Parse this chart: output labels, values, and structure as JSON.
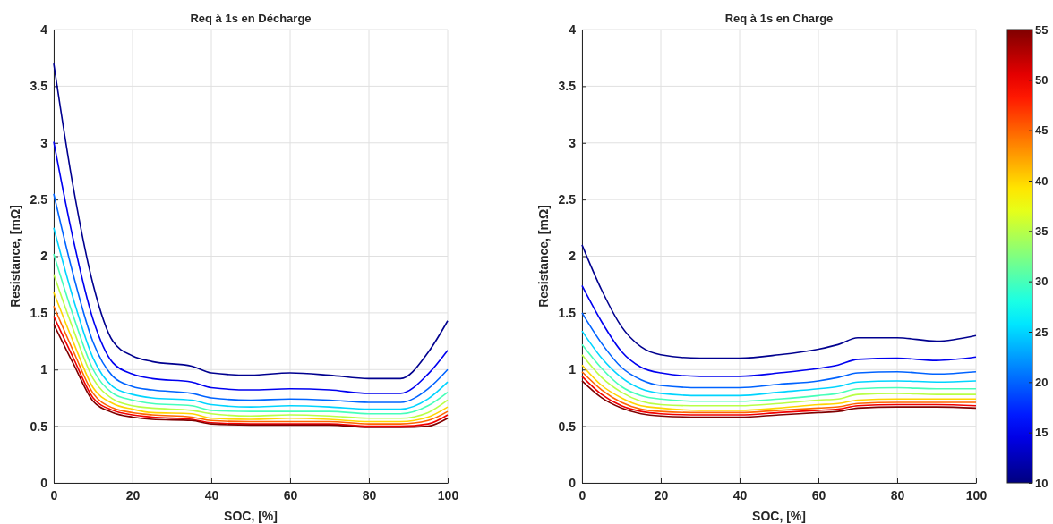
{
  "chart_data": [
    {
      "type": "line",
      "title": "Req à 1s en Décharge",
      "xlabel": "SOC, [%]",
      "ylabel": "Resistance, [mΩ]",
      "xlim": [
        0,
        100
      ],
      "xticks": [
        0,
        20,
        40,
        60,
        80,
        100
      ],
      "ylim": [
        0,
        4
      ],
      "yticks": [
        0,
        0.5,
        1,
        1.5,
        2,
        2.5,
        3,
        3.5,
        4
      ],
      "grid": true,
      "x": [
        0,
        5,
        10,
        15,
        20,
        25,
        35,
        40,
        50,
        60,
        70,
        80,
        88,
        95,
        100
      ],
      "series": [
        {
          "color": "#00008f",
          "values": [
            3.7,
            2.6,
            1.75,
            1.25,
            1.12,
            1.07,
            1.03,
            0.97,
            0.95,
            0.97,
            0.95,
            0.92,
            0.92,
            1.15,
            1.43
          ]
        },
        {
          "color": "#0000f0",
          "values": [
            3.01,
            2.14,
            1.44,
            1.06,
            0.96,
            0.92,
            0.89,
            0.84,
            0.82,
            0.83,
            0.82,
            0.79,
            0.79,
            0.96,
            1.17
          ]
        },
        {
          "color": "#0063ff",
          "values": [
            2.55,
            1.83,
            1.24,
            0.94,
            0.85,
            0.82,
            0.79,
            0.75,
            0.73,
            0.74,
            0.73,
            0.71,
            0.71,
            0.83,
            1.0
          ]
        },
        {
          "color": "#00d4ff",
          "values": [
            2.25,
            1.62,
            1.1,
            0.85,
            0.78,
            0.75,
            0.73,
            0.69,
            0.67,
            0.68,
            0.67,
            0.65,
            0.65,
            0.74,
            0.89
          ]
        },
        {
          "color": "#46ffb9",
          "values": [
            2.02,
            1.47,
            1.0,
            0.79,
            0.73,
            0.7,
            0.68,
            0.64,
            0.63,
            0.63,
            0.63,
            0.61,
            0.61,
            0.68,
            0.8
          ]
        },
        {
          "color": "#b9ff46",
          "values": [
            1.84,
            1.35,
            0.92,
            0.74,
            0.68,
            0.66,
            0.64,
            0.61,
            0.59,
            0.6,
            0.59,
            0.57,
            0.57,
            0.62,
            0.73
          ]
        },
        {
          "color": "#ffd400",
          "values": [
            1.68,
            1.24,
            0.84,
            0.7,
            0.65,
            0.62,
            0.61,
            0.57,
            0.56,
            0.57,
            0.56,
            0.54,
            0.54,
            0.58,
            0.67
          ]
        },
        {
          "color": "#ff6300",
          "values": [
            1.56,
            1.16,
            0.79,
            0.66,
            0.62,
            0.6,
            0.58,
            0.55,
            0.54,
            0.54,
            0.54,
            0.52,
            0.52,
            0.55,
            0.63
          ]
        },
        {
          "color": "#f00000",
          "values": [
            1.47,
            1.1,
            0.75,
            0.64,
            0.6,
            0.58,
            0.56,
            0.53,
            0.52,
            0.52,
            0.52,
            0.5,
            0.5,
            0.52,
            0.6
          ]
        },
        {
          "color": "#800000",
          "values": [
            1.4,
            1.05,
            0.72,
            0.62,
            0.58,
            0.56,
            0.55,
            0.52,
            0.51,
            0.51,
            0.51,
            0.49,
            0.49,
            0.5,
            0.57
          ]
        }
      ]
    },
    {
      "type": "line",
      "title": "Req à 1s en Charge",
      "xlabel": "SOC, [%]",
      "ylabel": "Resistance, [mΩ]",
      "xlim": [
        0,
        100
      ],
      "xticks": [
        0,
        20,
        40,
        60,
        80,
        100
      ],
      "ylim": [
        0,
        4
      ],
      "yticks": [
        0,
        0.5,
        1,
        1.5,
        2,
        2.5,
        3,
        3.5,
        4
      ],
      "grid": true,
      "clim": [
        10,
        55
      ],
      "cticks": [
        10,
        15,
        20,
        25,
        30,
        35,
        40,
        45,
        50,
        55
      ],
      "x": [
        0,
        5,
        10,
        15,
        20,
        30,
        40,
        50,
        60,
        65,
        70,
        80,
        90,
        100
      ],
      "series": [
        {
          "color": "#00008f",
          "values": [
            2.1,
            1.7,
            1.38,
            1.2,
            1.13,
            1.1,
            1.1,
            1.13,
            1.18,
            1.22,
            1.28,
            1.28,
            1.25,
            1.3
          ]
        },
        {
          "color": "#0000f0",
          "values": [
            1.74,
            1.42,
            1.16,
            1.02,
            0.97,
            0.94,
            0.94,
            0.97,
            1.01,
            1.04,
            1.09,
            1.1,
            1.08,
            1.11
          ]
        },
        {
          "color": "#0063ff",
          "values": [
            1.5,
            1.23,
            1.02,
            0.91,
            0.86,
            0.84,
            0.84,
            0.87,
            0.9,
            0.93,
            0.97,
            0.98,
            0.96,
            0.98
          ]
        },
        {
          "color": "#00d4ff",
          "values": [
            1.34,
            1.1,
            0.93,
            0.83,
            0.79,
            0.77,
            0.77,
            0.8,
            0.83,
            0.85,
            0.89,
            0.9,
            0.89,
            0.9
          ]
        },
        {
          "color": "#46ffb9",
          "values": [
            1.22,
            1.01,
            0.85,
            0.77,
            0.74,
            0.72,
            0.72,
            0.74,
            0.77,
            0.79,
            0.83,
            0.84,
            0.83,
            0.83
          ]
        },
        {
          "color": "#b9ff46",
          "values": [
            1.13,
            0.93,
            0.8,
            0.72,
            0.69,
            0.68,
            0.68,
            0.7,
            0.73,
            0.74,
            0.78,
            0.79,
            0.78,
            0.78
          ]
        },
        {
          "color": "#ffd400",
          "values": [
            1.04,
            0.86,
            0.75,
            0.68,
            0.66,
            0.64,
            0.64,
            0.66,
            0.69,
            0.7,
            0.73,
            0.74,
            0.74,
            0.74
          ]
        },
        {
          "color": "#ff6300",
          "values": [
            0.98,
            0.82,
            0.71,
            0.65,
            0.63,
            0.62,
            0.62,
            0.64,
            0.66,
            0.67,
            0.7,
            0.71,
            0.71,
            0.71
          ]
        },
        {
          "color": "#f00000",
          "values": [
            0.94,
            0.78,
            0.68,
            0.63,
            0.61,
            0.6,
            0.6,
            0.62,
            0.64,
            0.65,
            0.68,
            0.69,
            0.69,
            0.68
          ]
        },
        {
          "color": "#800000",
          "values": [
            0.9,
            0.75,
            0.66,
            0.61,
            0.59,
            0.58,
            0.58,
            0.6,
            0.62,
            0.63,
            0.66,
            0.67,
            0.67,
            0.66
          ]
        }
      ]
    }
  ]
}
